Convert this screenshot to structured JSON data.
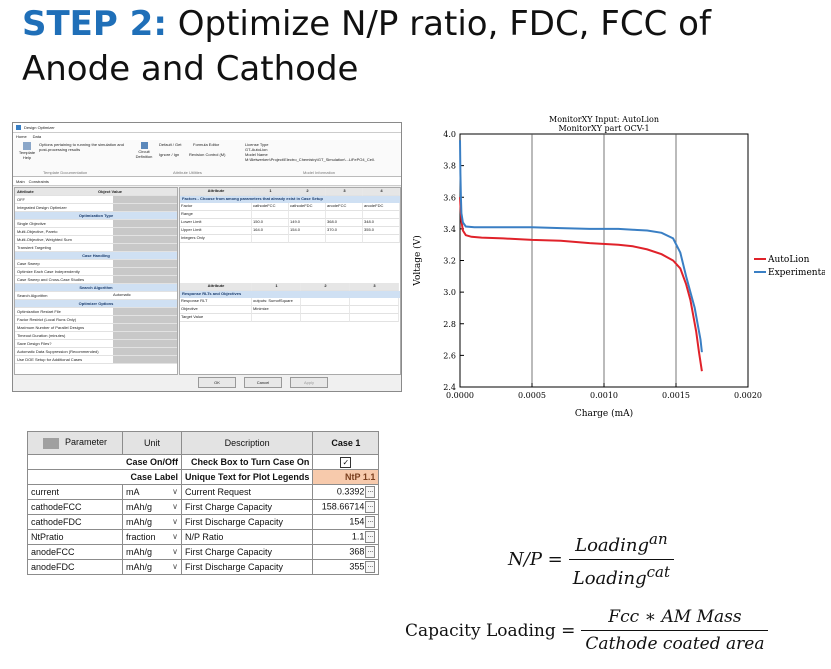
{
  "slide": {
    "step_label": "STEP 2:",
    "title_rest": "Optimize N/P ratio, FDC, FCC of Anode and Cathode"
  },
  "optimizer": {
    "window_title": "Design Optimizer",
    "menu": [
      "Home",
      "Data"
    ],
    "ribbon": {
      "template_help": "Template Help",
      "help_text": "Options pertaining to running the simulation and post-processing results",
      "group_template_doc": "Template Documentation",
      "circuit_definition": "Circuit Definition",
      "default_get": "Default / Get",
      "formula_editor": "Formula Editor",
      "ignore_ign": "Ignore / Ign",
      "revision_control": "Revision Control (M)",
      "group_attribute": "Attribute Utilities",
      "license_type_label": "License Type",
      "license_type": "GT-AutoLion",
      "model_name_label": "Model Name",
      "model_path": "M:\\Betwerken\\Project\\Electro_Chemistry\\GT_Simulation\\...LiFePO4_Cell.",
      "group_model": "Model Information"
    },
    "tabs": [
      "Main",
      "Constraints"
    ],
    "left_header": [
      "Attribute",
      "Object Value"
    ],
    "left_rows": [
      {
        "type": "row",
        "label": "OFF"
      },
      {
        "type": "row",
        "label": "Integrated Design Optimizer"
      },
      {
        "type": "sec",
        "label": "Optimization Type"
      },
      {
        "type": "row",
        "label": "Single Objective"
      },
      {
        "type": "row",
        "label": "Multi-Objective, Pareto"
      },
      {
        "type": "row",
        "label": "Multi-Objective, Weighted Sum"
      },
      {
        "type": "row",
        "label": "Transient Targeting"
      },
      {
        "type": "sec",
        "label": "Case Handling"
      },
      {
        "type": "row",
        "label": "Case Sweep"
      },
      {
        "type": "row",
        "label": "Optimize Each Case Independently"
      },
      {
        "type": "row",
        "label": "Case Sweep and Cross-Case Studies"
      },
      {
        "type": "sec",
        "label": "Search Algorithm"
      },
      {
        "type": "row",
        "label": "Search Algorithm"
      },
      {
        "type": "sec",
        "label": "Optimizer Options"
      },
      {
        "type": "row",
        "label": "Optimization Restart File"
      },
      {
        "type": "row",
        "label": "Factor Restrict (Local Runs Only)"
      },
      {
        "type": "row",
        "label": "Maximum Number of Parallel Designs"
      },
      {
        "type": "row",
        "label": "Timeout Duration (minutes)"
      },
      {
        "type": "row",
        "label": "Save Design Files?"
      },
      {
        "type": "row",
        "label": "Automatic Data Suppression (Recommended)"
      },
      {
        "type": "row",
        "label": "Use DOE Setup for Additional Cases"
      }
    ],
    "search_algorithm_value": "Automatic",
    "right_header": [
      "Attribute",
      "1",
      "2",
      "3",
      "4"
    ],
    "factors_banner": "Factors - Choose from among parameters that already exist in Case Setup",
    "factor_rows": [
      [
        "Factor",
        "cathodeFCC",
        "cathodeFDC",
        "anodeFCC",
        "anodeFDC"
      ],
      [
        "Range",
        "",
        "",
        "",
        ""
      ],
      [
        "Lower Limit",
        "150.0",
        "149.0",
        "368.0",
        "348.0"
      ],
      [
        "Upper Limit",
        "164.0",
        "154.0",
        "370.0",
        "355.0"
      ],
      [
        "Integers Only",
        "",
        "",
        "",
        ""
      ]
    ],
    "resp_header": [
      "Attribute",
      "1",
      "2",
      "3"
    ],
    "response_banner": "Response RLTs and Objectives",
    "response_rows": [
      [
        "Response RLT",
        "outputs: SumofSquare",
        "",
        ""
      ],
      [
        "Objective",
        "Minimize",
        "",
        ""
      ],
      [
        "Target Value",
        "",
        "",
        ""
      ]
    ],
    "buttons": [
      "OK",
      "Cancel",
      "Apply"
    ]
  },
  "chart_data": {
    "type": "line",
    "title": "MonitorXY Input: AutoLion",
    "subtitle": "MonitorXY part OCV-1",
    "xlabel": "Charge (mA)",
    "ylabel": "Voltage (V)",
    "xlim": [
      0,
      0.002
    ],
    "ylim": [
      2.4,
      4.0
    ],
    "x_ticks": [
      "0.0000",
      "0.0005",
      "0.0010",
      "0.0015",
      "0.0020"
    ],
    "y_ticks": [
      "2.4",
      "2.6",
      "2.8",
      "3.0",
      "3.2",
      "3.4",
      "3.6",
      "3.8",
      "4.0"
    ],
    "grid": "vertical",
    "legend_position": "right",
    "series": [
      {
        "name": "AutoLion",
        "color": "#e0222a",
        "x": [
          0.0,
          5e-06,
          1e-05,
          2e-05,
          4e-05,
          8e-05,
          0.00015,
          0.0003,
          0.0005,
          0.0007,
          0.0009,
          0.0011,
          0.0012,
          0.0013,
          0.0014,
          0.00148,
          0.00153,
          0.00157,
          0.0016,
          0.00162,
          0.00164,
          0.00166,
          0.00168
        ],
        "y": [
          3.6,
          3.52,
          3.45,
          3.39,
          3.36,
          3.35,
          3.345,
          3.34,
          3.33,
          3.325,
          3.31,
          3.3,
          3.29,
          3.27,
          3.24,
          3.2,
          3.15,
          3.05,
          2.95,
          2.85,
          2.75,
          2.62,
          2.5
        ]
      },
      {
        "name": "Experimental",
        "color": "#3a7fc4",
        "x": [
          0.0,
          3e-06,
          6e-06,
          1e-05,
          2e-05,
          4e-05,
          0.0001,
          0.0003,
          0.0005,
          0.0007,
          0.0009,
          0.0011,
          0.0012,
          0.0013,
          0.0014,
          0.00148,
          0.00153,
          0.00157,
          0.0016,
          0.00163,
          0.00165,
          0.00167,
          0.00168
        ],
        "y": [
          3.96,
          3.75,
          3.6,
          3.5,
          3.44,
          3.415,
          3.41,
          3.41,
          3.41,
          3.405,
          3.4,
          3.4,
          3.395,
          3.39,
          3.375,
          3.34,
          3.25,
          3.1,
          3.0,
          2.9,
          2.8,
          2.7,
          2.62
        ]
      }
    ]
  },
  "param_table": {
    "headers": [
      "Parameter",
      "Unit",
      "Description",
      "Case 1"
    ],
    "case_on_off": {
      "label": "Case On/Off",
      "description": "Check Box to Turn Case On",
      "checked": "✓"
    },
    "case_label": {
      "label": "Case Label",
      "description": "Unique Text for Plot Legends",
      "value": "NtP 1.1"
    },
    "rows": [
      {
        "param": "current",
        "unit": "mA",
        "desc": "Current Request",
        "value": "0.3392"
      },
      {
        "param": "cathodeFCC",
        "unit": "mAh/g",
        "desc": "First Charge Capacity",
        "value": "158.66714"
      },
      {
        "param": "cathodeFDC",
        "unit": "mAh/g",
        "desc": "First Discharge Capacity",
        "value": "154"
      },
      {
        "param": "NtPratio",
        "unit": "fraction",
        "desc": "N/P Ratio",
        "value": "1.1"
      },
      {
        "param": "anodeFCC",
        "unit": "mAh/g",
        "desc": "First Charge Capacity",
        "value": "368"
      },
      {
        "param": "anodeFDC",
        "unit": "mAh/g",
        "desc": "First Discharge Capacity",
        "value": "355"
      }
    ],
    "ellipsis": "...",
    "dropdown": "∨"
  },
  "equations": {
    "np_lhs": "N/P =",
    "np_num_base": "Loading",
    "np_num_sup": "an",
    "np_den_base": "Loading",
    "np_den_sup": "cat",
    "cap_lhs": "Capacity Loading =",
    "cap_num": "Fcc ∗ AM Mass",
    "cap_den": "Cathode coated area"
  }
}
